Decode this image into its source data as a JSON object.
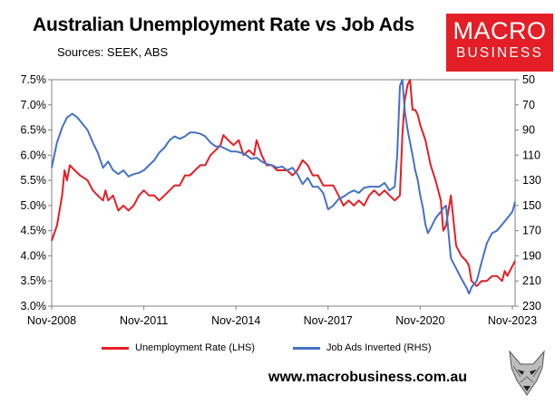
{
  "header": {
    "title": "Australian Unemployment Rate vs Job Ads",
    "subtitle": "Sources: SEEK, ABS",
    "brand_line1": "MACRO",
    "brand_line2": "BUSINESS",
    "brand_color": "#e41e26"
  },
  "footer": {
    "url": "www.macrobusiness.com.au"
  },
  "chart_data": {
    "type": "line",
    "title": "Australian Unemployment Rate vs Job Ads",
    "x_labels": [
      "Nov-2008",
      "Nov-2011",
      "Nov-2014",
      "Nov-2017",
      "Nov-2020",
      "Nov-2023"
    ],
    "x_range": [
      2008.83,
      2023.92
    ],
    "y_left": {
      "ticks": [
        "3.0%",
        "3.5%",
        "4.0%",
        "4.5%",
        "5.0%",
        "5.5%",
        "6.0%",
        "6.5%",
        "7.0%",
        "7.5%"
      ],
      "min": 3.0,
      "max": 7.5
    },
    "y_right": {
      "ticks": [
        "50",
        "70",
        "90",
        "110",
        "130",
        "150",
        "170",
        "190",
        "210",
        "230"
      ],
      "min": 50,
      "max": 230,
      "inverted": true
    },
    "grid": false,
    "legend_position": "bottom",
    "series": [
      {
        "name": "Unemployment Rate (LHS)",
        "axis": "left",
        "color": "#e41e26",
        "points": [
          [
            2008.83,
            4.3
          ],
          [
            2009.0,
            4.6
          ],
          [
            2009.17,
            5.2
          ],
          [
            2009.25,
            5.7
          ],
          [
            2009.33,
            5.5
          ],
          [
            2009.42,
            5.8
          ],
          [
            2009.58,
            5.7
          ],
          [
            2009.75,
            5.6
          ],
          [
            2010.0,
            5.5
          ],
          [
            2010.17,
            5.3
          ],
          [
            2010.33,
            5.2
          ],
          [
            2010.5,
            5.1
          ],
          [
            2010.58,
            5.3
          ],
          [
            2010.67,
            5.1
          ],
          [
            2010.83,
            5.2
          ],
          [
            2011.0,
            4.9
          ],
          [
            2011.17,
            5.0
          ],
          [
            2011.33,
            4.9
          ],
          [
            2011.5,
            5.0
          ],
          [
            2011.67,
            5.2
          ],
          [
            2011.83,
            5.3
          ],
          [
            2012.0,
            5.2
          ],
          [
            2012.17,
            5.2
          ],
          [
            2012.33,
            5.1
          ],
          [
            2012.5,
            5.2
          ],
          [
            2012.67,
            5.3
          ],
          [
            2012.83,
            5.4
          ],
          [
            2013.0,
            5.4
          ],
          [
            2013.17,
            5.6
          ],
          [
            2013.33,
            5.6
          ],
          [
            2013.5,
            5.7
          ],
          [
            2013.67,
            5.8
          ],
          [
            2013.83,
            5.8
          ],
          [
            2014.0,
            6.0
          ],
          [
            2014.17,
            6.1
          ],
          [
            2014.33,
            6.2
          ],
          [
            2014.42,
            6.4
          ],
          [
            2014.58,
            6.3
          ],
          [
            2014.75,
            6.2
          ],
          [
            2014.92,
            6.3
          ],
          [
            2015.08,
            6.0
          ],
          [
            2015.25,
            6.1
          ],
          [
            2015.42,
            6.0
          ],
          [
            2015.5,
            6.3
          ],
          [
            2015.67,
            6.0
          ],
          [
            2015.83,
            5.8
          ],
          [
            2016.0,
            5.8
          ],
          [
            2016.17,
            5.7
          ],
          [
            2016.33,
            5.7
          ],
          [
            2016.5,
            5.7
          ],
          [
            2016.67,
            5.6
          ],
          [
            2016.83,
            5.7
          ],
          [
            2017.0,
            5.9
          ],
          [
            2017.17,
            5.8
          ],
          [
            2017.33,
            5.6
          ],
          [
            2017.5,
            5.6
          ],
          [
            2017.67,
            5.4
          ],
          [
            2017.83,
            5.4
          ],
          [
            2018.0,
            5.4
          ],
          [
            2018.17,
            5.2
          ],
          [
            2018.33,
            5.0
          ],
          [
            2018.5,
            5.1
          ],
          [
            2018.67,
            5.0
          ],
          [
            2018.83,
            5.1
          ],
          [
            2019.0,
            5.0
          ],
          [
            2019.17,
            5.2
          ],
          [
            2019.33,
            5.3
          ],
          [
            2019.5,
            5.2
          ],
          [
            2019.67,
            5.3
          ],
          [
            2019.83,
            5.2
          ],
          [
            2020.0,
            5.1
          ],
          [
            2020.17,
            5.2
          ],
          [
            2020.25,
            6.4
          ],
          [
            2020.33,
            7.1
          ],
          [
            2020.42,
            7.4
          ],
          [
            2020.5,
            7.5
          ],
          [
            2020.58,
            6.9
          ],
          [
            2020.67,
            6.9
          ],
          [
            2020.75,
            6.8
          ],
          [
            2020.83,
            6.6
          ],
          [
            2021.0,
            6.3
          ],
          [
            2021.17,
            5.8
          ],
          [
            2021.33,
            5.5
          ],
          [
            2021.5,
            5.1
          ],
          [
            2021.58,
            4.5
          ],
          [
            2021.67,
            4.6
          ],
          [
            2021.83,
            5.2
          ],
          [
            2022.0,
            4.2
          ],
          [
            2022.17,
            4.0
          ],
          [
            2022.33,
            3.9
          ],
          [
            2022.42,
            3.8
          ],
          [
            2022.5,
            3.5
          ],
          [
            2022.67,
            3.4
          ],
          [
            2022.83,
            3.5
          ],
          [
            2023.0,
            3.5
          ],
          [
            2023.17,
            3.6
          ],
          [
            2023.33,
            3.6
          ],
          [
            2023.5,
            3.5
          ],
          [
            2023.58,
            3.7
          ],
          [
            2023.67,
            3.6
          ],
          [
            2023.75,
            3.7
          ],
          [
            2023.92,
            3.9
          ]
        ]
      },
      {
        "name": "Job Ads Inverted (RHS)",
        "axis": "right",
        "color": "#4472c4",
        "points": [
          [
            2008.83,
            120
          ],
          [
            2009.0,
            100
          ],
          [
            2009.17,
            88
          ],
          [
            2009.33,
            80
          ],
          [
            2009.5,
            77
          ],
          [
            2009.67,
            80
          ],
          [
            2009.83,
            85
          ],
          [
            2010.0,
            90
          ],
          [
            2010.17,
            100
          ],
          [
            2010.33,
            108
          ],
          [
            2010.5,
            120
          ],
          [
            2010.67,
            115
          ],
          [
            2010.83,
            122
          ],
          [
            2011.0,
            125
          ],
          [
            2011.17,
            122
          ],
          [
            2011.33,
            127
          ],
          [
            2011.5,
            125
          ],
          [
            2011.67,
            124
          ],
          [
            2011.83,
            122
          ],
          [
            2012.0,
            118
          ],
          [
            2012.17,
            114
          ],
          [
            2012.33,
            108
          ],
          [
            2012.5,
            104
          ],
          [
            2012.67,
            98
          ],
          [
            2012.83,
            95
          ],
          [
            2013.0,
            97
          ],
          [
            2013.17,
            95
          ],
          [
            2013.33,
            92
          ],
          [
            2013.5,
            92
          ],
          [
            2013.67,
            93
          ],
          [
            2013.83,
            95
          ],
          [
            2014.0,
            100
          ],
          [
            2014.17,
            103
          ],
          [
            2014.33,
            103
          ],
          [
            2014.5,
            105
          ],
          [
            2014.67,
            107
          ],
          [
            2014.83,
            107
          ],
          [
            2015.0,
            108
          ],
          [
            2015.17,
            110
          ],
          [
            2015.33,
            113
          ],
          [
            2015.5,
            112
          ],
          [
            2015.67,
            115
          ],
          [
            2015.83,
            117
          ],
          [
            2016.0,
            118
          ],
          [
            2016.17,
            120
          ],
          [
            2016.33,
            119
          ],
          [
            2016.5,
            122
          ],
          [
            2016.67,
            120
          ],
          [
            2016.83,
            125
          ],
          [
            2017.0,
            133
          ],
          [
            2017.17,
            128
          ],
          [
            2017.33,
            135
          ],
          [
            2017.5,
            135
          ],
          [
            2017.67,
            140
          ],
          [
            2017.83,
            153
          ],
          [
            2018.0,
            150
          ],
          [
            2018.17,
            145
          ],
          [
            2018.33,
            143
          ],
          [
            2018.5,
            140
          ],
          [
            2018.67,
            138
          ],
          [
            2018.83,
            140
          ],
          [
            2019.0,
            136
          ],
          [
            2019.17,
            135
          ],
          [
            2019.33,
            135
          ],
          [
            2019.5,
            135
          ],
          [
            2019.67,
            132
          ],
          [
            2019.83,
            138
          ],
          [
            2020.0,
            135
          ],
          [
            2020.08,
            110
          ],
          [
            2020.17,
            55
          ],
          [
            2020.25,
            50
          ],
          [
            2020.33,
            75
          ],
          [
            2020.42,
            90
          ],
          [
            2020.5,
            100
          ],
          [
            2020.58,
            110
          ],
          [
            2020.67,
            122
          ],
          [
            2020.75,
            130
          ],
          [
            2020.83,
            142
          ],
          [
            2020.92,
            152
          ],
          [
            2021.0,
            165
          ],
          [
            2021.08,
            172
          ],
          [
            2021.17,
            168
          ],
          [
            2021.33,
            160
          ],
          [
            2021.5,
            155
          ],
          [
            2021.58,
            152
          ],
          [
            2021.67,
            150
          ],
          [
            2021.83,
            192
          ],
          [
            2022.0,
            200
          ],
          [
            2022.17,
            208
          ],
          [
            2022.33,
            215
          ],
          [
            2022.42,
            220
          ],
          [
            2022.5,
            215
          ],
          [
            2022.67,
            210
          ],
          [
            2022.83,
            195
          ],
          [
            2023.0,
            180
          ],
          [
            2023.17,
            172
          ],
          [
            2023.33,
            170
          ],
          [
            2023.5,
            165
          ],
          [
            2023.67,
            160
          ],
          [
            2023.83,
            155
          ],
          [
            2023.92,
            147
          ]
        ]
      }
    ]
  }
}
